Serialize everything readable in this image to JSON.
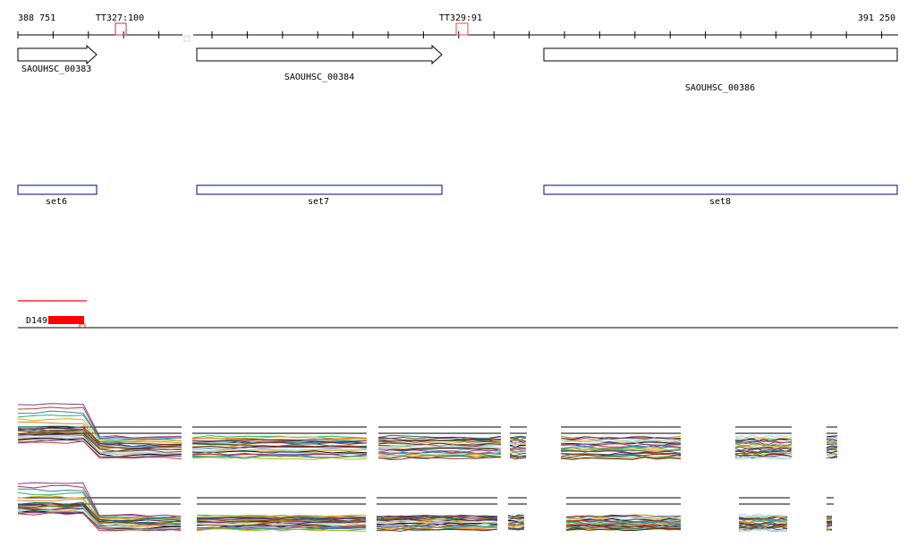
{
  "coordinates": {
    "start_label": "388 751",
    "end_label": "391 250"
  },
  "terminators": [
    {
      "label": "TT327:100",
      "color": "#c0304a"
    },
    {
      "label": "TT329:91",
      "color": "#e0503a"
    }
  ],
  "genes": [
    {
      "label": "SAOUHSC_00383",
      "strand": "+"
    },
    {
      "label": "SAOUHSC_00384",
      "strand": "+"
    },
    {
      "label": "SAOUHSC_00386",
      "strand": "none"
    }
  ],
  "probe_sets": [
    {
      "label": "set6"
    },
    {
      "label": "set7"
    },
    {
      "label": "set8"
    }
  ],
  "feature": {
    "label": "D149",
    "color": "#ff0000"
  },
  "colors": {
    "gene_outline": "#000000",
    "set_outline": "#00008b",
    "axis": "#000000"
  },
  "chart_data": {
    "type": "line",
    "title": "",
    "description_series": "expression profiles per probe set segment",
    "tracks": [
      "upper",
      "lower"
    ]
  }
}
